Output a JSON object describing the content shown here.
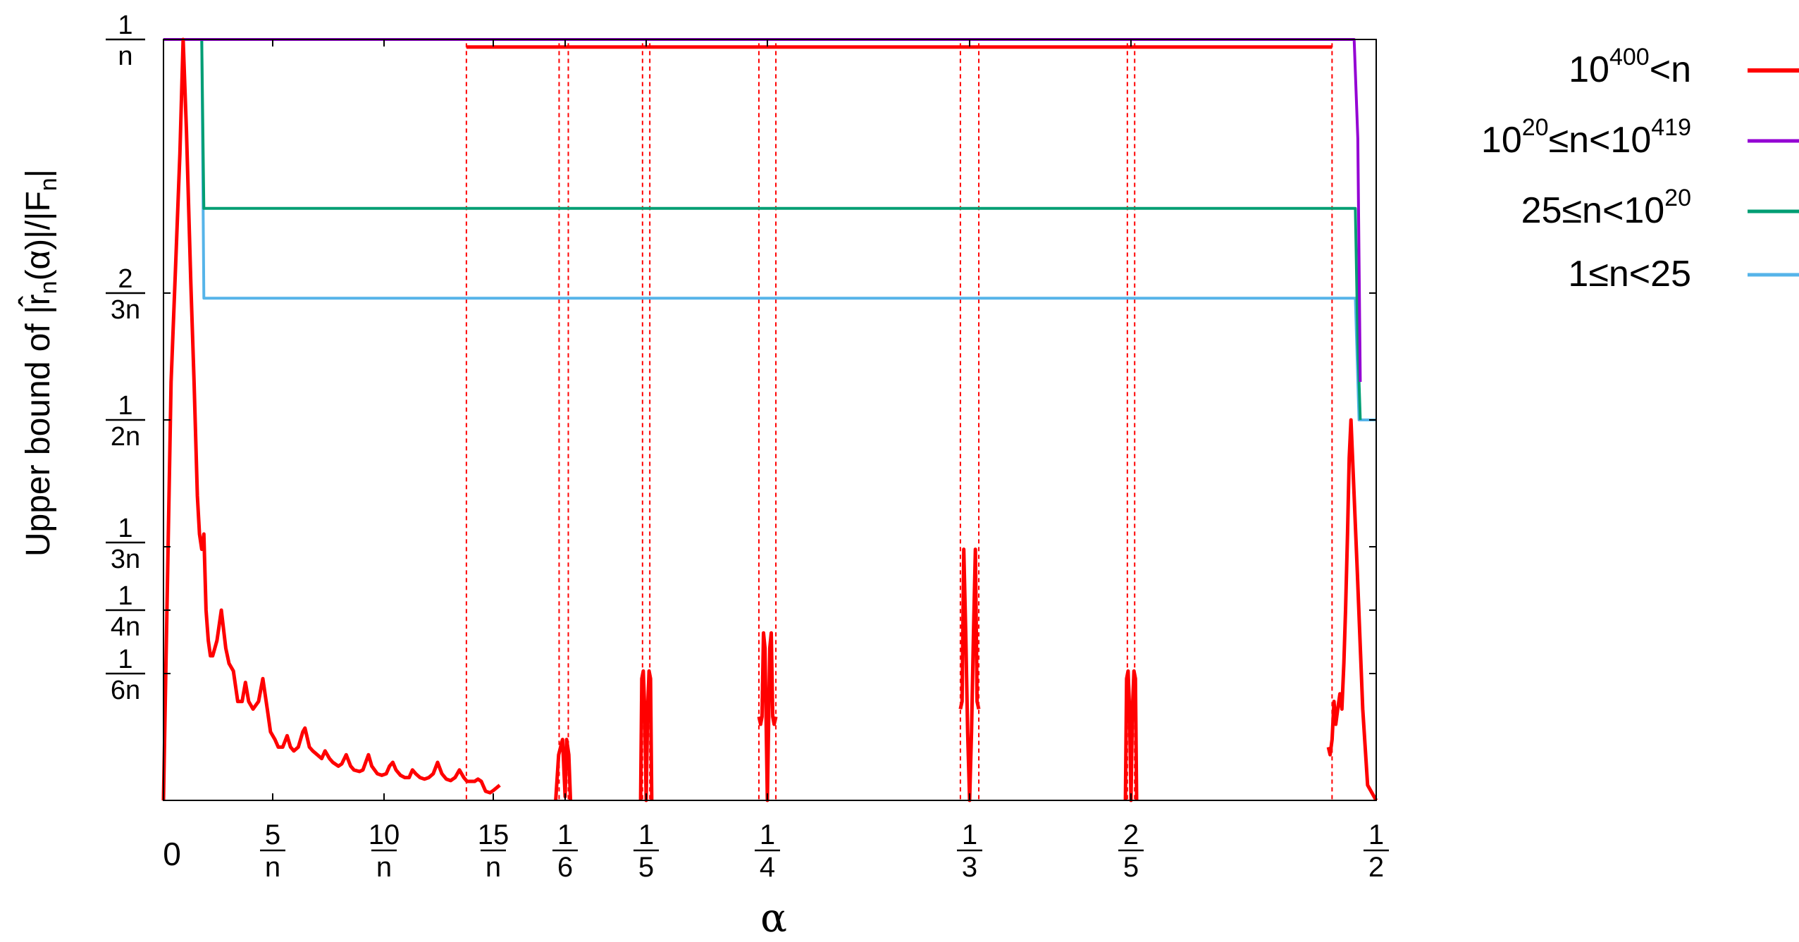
{
  "chart_data": {
    "type": "line",
    "xlabel": "α",
    "ylabel": {
      "prefix": "Upper bound of |",
      "hat": "r̂",
      "sub1": "n",
      "mid": "(α)|/|F",
      "sub2": "n",
      "suffix": "|"
    },
    "x_ticks": [
      {
        "value": 0,
        "num": "0",
        "den": ""
      },
      {
        "value": 0.05,
        "num": "5",
        "den": "n"
      },
      {
        "value": 0.1,
        "num": "10",
        "den": "n"
      },
      {
        "value": 0.15,
        "num": "15",
        "den": "n"
      },
      {
        "value": 0.1667,
        "num": "1",
        "den": "6"
      },
      {
        "value": 0.2,
        "num": "1",
        "den": "5"
      },
      {
        "value": 0.25,
        "num": "1",
        "den": "4"
      },
      {
        "value": 0.3333,
        "num": "1",
        "den": "3"
      },
      {
        "value": 0.4,
        "num": "2",
        "den": "5"
      },
      {
        "value": 0.5,
        "num": "1",
        "den": "2"
      }
    ],
    "y_ticks": [
      {
        "value": 1.0,
        "num": "1",
        "den": "n"
      },
      {
        "value": 0.6667,
        "num": "2",
        "den": "3n"
      },
      {
        "value": 0.5,
        "num": "1",
        "den": "2n"
      },
      {
        "value": 0.3333,
        "num": "1",
        "den": "3n"
      },
      {
        "value": 0.25,
        "num": "1",
        "den": "4n"
      },
      {
        "value": 0.1667,
        "num": "1",
        "den": "6n"
      }
    ],
    "xlim": [
      0,
      0.5
    ],
    "ylim": [
      0,
      1.0
    ],
    "legend_position": "outside-right",
    "series": [
      {
        "name": {
          "base1": "10",
          "exp1": "400",
          "rest": "<n",
          "exp2": ""
        },
        "color": "#ff0000",
        "width": 5,
        "segments": [
          [
            [
              0.0,
              0.0
            ],
            [
              0.0035,
              0.55
            ],
            [
              0.0055,
              0.7
            ],
            [
              0.0075,
              0.85
            ],
            [
              0.009,
              1.0
            ],
            [
              0.0105,
              0.88
            ],
            [
              0.0125,
              0.68
            ],
            [
              0.014,
              0.55
            ],
            [
              0.0155,
              0.4
            ],
            [
              0.0165,
              0.35
            ],
            [
              0.0175,
              0.33
            ],
            [
              0.0185,
              0.35
            ],
            [
              0.0195,
              0.25
            ],
            [
              0.0205,
              0.21
            ],
            [
              0.0215,
              0.19
            ],
            [
              0.0225,
              0.19
            ],
            [
              0.0245,
              0.21
            ],
            [
              0.0265,
              0.25
            ],
            [
              0.0285,
              0.2
            ],
            [
              0.03,
              0.18
            ],
            [
              0.032,
              0.17
            ],
            [
              0.034,
              0.13
            ],
            [
              0.036,
              0.13
            ],
            [
              0.0375,
              0.155
            ],
            [
              0.039,
              0.13
            ],
            [
              0.041,
              0.12
            ],
            [
              0.0435,
              0.13
            ],
            [
              0.0455,
              0.16
            ],
            [
              0.0475,
              0.12
            ],
            [
              0.049,
              0.09
            ],
            [
              0.051,
              0.08
            ],
            [
              0.0525,
              0.07
            ],
            [
              0.0545,
              0.07
            ],
            [
              0.0565,
              0.085
            ],
            [
              0.058,
              0.07
            ],
            [
              0.0595,
              0.065
            ],
            [
              0.0615,
              0.07
            ],
            [
              0.0635,
              0.09
            ],
            [
              0.0645,
              0.095
            ],
            [
              0.0665,
              0.07
            ],
            [
              0.068,
              0.065
            ],
            [
              0.07,
              0.06
            ],
            [
              0.072,
              0.055
            ],
            [
              0.0735,
              0.065
            ],
            [
              0.0755,
              0.055
            ],
            [
              0.077,
              0.05
            ],
            [
              0.0795,
              0.045
            ],
            [
              0.081,
              0.048
            ],
            [
              0.083,
              0.06
            ],
            [
              0.085,
              0.045
            ],
            [
              0.0865,
              0.04
            ],
            [
              0.089,
              0.038
            ],
            [
              0.0905,
              0.04
            ],
            [
              0.093,
              0.06
            ],
            [
              0.0945,
              0.045
            ],
            [
              0.097,
              0.035
            ],
            [
              0.099,
              0.033
            ],
            [
              0.101,
              0.035
            ],
            [
              0.1025,
              0.045
            ],
            [
              0.104,
              0.05
            ],
            [
              0.1055,
              0.04
            ],
            [
              0.1075,
              0.033
            ],
            [
              0.1095,
              0.03
            ],
            [
              0.1115,
              0.03
            ],
            [
              0.113,
              0.04
            ],
            [
              0.1145,
              0.035
            ],
            [
              0.1165,
              0.03
            ],
            [
              0.1185,
              0.028
            ],
            [
              0.1205,
              0.03
            ],
            [
              0.1225,
              0.035
            ],
            [
              0.1245,
              0.05
            ],
            [
              0.1265,
              0.035
            ],
            [
              0.1285,
              0.028
            ],
            [
              0.1305,
              0.026
            ],
            [
              0.1325,
              0.03
            ],
            [
              0.1345,
              0.04
            ],
            [
              0.1365,
              0.03
            ],
            [
              0.138,
              0.025
            ],
            [
              0.14,
              0.025
            ],
            [
              0.1415,
              0.025
            ],
            [
              0.143,
              0.028
            ],
            [
              0.1445,
              0.025
            ],
            [
              0.1465,
              0.012
            ],
            [
              0.1485,
              0.01
            ],
            [
              0.15,
              0.013
            ],
            [
              0.1515,
              0.02
            ]
          ],
          [
            [
              0.1645,
              0.0
            ],
            [
              0.1652,
              0.06
            ],
            [
              0.1661,
              0.08
            ],
            [
              0.1667,
              0.005
            ],
            [
              0.1673,
              0.08
            ],
            [
              0.1682,
              0.06
            ],
            [
              0.1689,
              0.0
            ]
          ],
          [
            [
              0.1977,
              0.0
            ],
            [
              0.1982,
              0.16
            ],
            [
              0.1988,
              0.17
            ],
            [
              0.1994,
              0.12
            ],
            [
              0.2,
              0.0
            ],
            [
              0.2006,
              0.12
            ],
            [
              0.2012,
              0.17
            ],
            [
              0.2018,
              0.16
            ],
            [
              0.2023,
              0.0
            ]
          ],
          [
            [
              0.2465,
              0.11
            ],
            [
              0.2472,
              0.1
            ],
            [
              0.2478,
              0.11
            ],
            [
              0.2484,
              0.22
            ],
            [
              0.249,
              0.2
            ],
            [
              0.2495,
              0.1
            ],
            [
              0.25,
              0.0
            ],
            [
              0.2505,
              0.1
            ],
            [
              0.251,
              0.2
            ],
            [
              0.2516,
              0.22
            ],
            [
              0.2522,
              0.11
            ],
            [
              0.2528,
              0.1
            ],
            [
              0.2535,
              0.11
            ]
          ],
          [
            [
              0.3295,
              0.12
            ],
            [
              0.3302,
              0.13
            ],
            [
              0.3309,
              0.33
            ],
            [
              0.3317,
              0.22
            ],
            [
              0.3325,
              0.09
            ],
            [
              0.3333,
              0.0
            ],
            [
              0.3341,
              0.09
            ],
            [
              0.3349,
              0.22
            ],
            [
              0.3357,
              0.33
            ],
            [
              0.3364,
              0.13
            ],
            [
              0.3371,
              0.12
            ]
          ],
          [
            [
              0.3977,
              0.0
            ],
            [
              0.3982,
              0.16
            ],
            [
              0.3988,
              0.17
            ],
            [
              0.3994,
              0.12
            ],
            [
              0.4,
              0.0
            ],
            [
              0.4006,
              0.12
            ],
            [
              0.4012,
              0.17
            ],
            [
              0.4018,
              0.16
            ],
            [
              0.4023,
              0.0
            ]
          ],
          [
            [
              0.4805,
              0.07
            ],
            [
              0.4812,
              0.06
            ],
            [
              0.482,
              0.08
            ],
            [
              0.4828,
              0.13
            ],
            [
              0.4835,
              0.1
            ],
            [
              0.4843,
              0.12
            ],
            [
              0.4852,
              0.14
            ],
            [
              0.486,
              0.12
            ],
            [
              0.4868,
              0.18
            ],
            [
              0.4875,
              0.25
            ],
            [
              0.4883,
              0.35
            ],
            [
              0.489,
              0.45
            ],
            [
              0.4897,
              0.5
            ],
            [
              0.4923,
              0.3
            ],
            [
              0.4945,
              0.12
            ],
            [
              0.4965,
              0.02
            ],
            [
              0.5,
              0.0
            ]
          ],
          [
            [
              0.1377,
              0.99
            ],
            [
              0.1667,
              0.99
            ]
          ],
          [
            [
              0.1667,
              0.99
            ],
            [
              0.2,
              0.99
            ]
          ],
          [
            [
              0.2,
              0.99
            ],
            [
              0.25,
              0.99
            ]
          ],
          [
            [
              0.25,
              0.99
            ],
            [
              0.3333,
              0.99
            ]
          ],
          [
            [
              0.3333,
              0.99
            ],
            [
              0.4,
              0.99
            ]
          ],
          [
            [
              0.4,
              0.99
            ],
            [
              0.482,
              0.99
            ]
          ]
        ]
      },
      {
        "name": {
          "base1": "10",
          "exp1": "20",
          "rest": "≤n<10",
          "exp2": "419"
        },
        "color": "#9400d3",
        "width": 4,
        "segments": [
          [
            [
              0.0,
              1.0
            ],
            [
              0.491,
              1.0
            ],
            [
              0.4925,
              0.87
            ],
            [
              0.4935,
              0.55
            ]
          ]
        ]
      },
      {
        "name": {
          "base1": "25≤n<10",
          "exp1": "20",
          "rest": "",
          "exp2": ""
        },
        "color": "#009e73",
        "width": 4,
        "segments": [
          [
            [
              0.0,
              1.0
            ],
            [
              0.0175,
              1.0
            ],
            [
              0.0185,
              0.778
            ],
            [
              0.4915,
              0.778
            ],
            [
              0.4925,
              0.6
            ],
            [
              0.4935,
              0.5
            ]
          ]
        ]
      },
      {
        "name": {
          "base1": "1≤n<25",
          "exp1": "",
          "rest": "",
          "exp2": ""
        },
        "color": "#56b4e9",
        "width": 4,
        "segments": [
          [
            [
              0.0,
              1.0
            ],
            [
              0.0175,
              1.0
            ],
            [
              0.0185,
              0.66
            ],
            [
              0.4915,
              0.66
            ],
            [
              0.493,
              0.5
            ],
            [
              0.5,
              0.5
            ]
          ]
        ]
      }
    ],
    "guides": [
      0.1377,
      0.1653,
      0.168,
      0.1985,
      0.2015,
      0.2465,
      0.2535,
      0.3295,
      0.3371,
      0.3985,
      0.4015,
      0.482
    ]
  }
}
